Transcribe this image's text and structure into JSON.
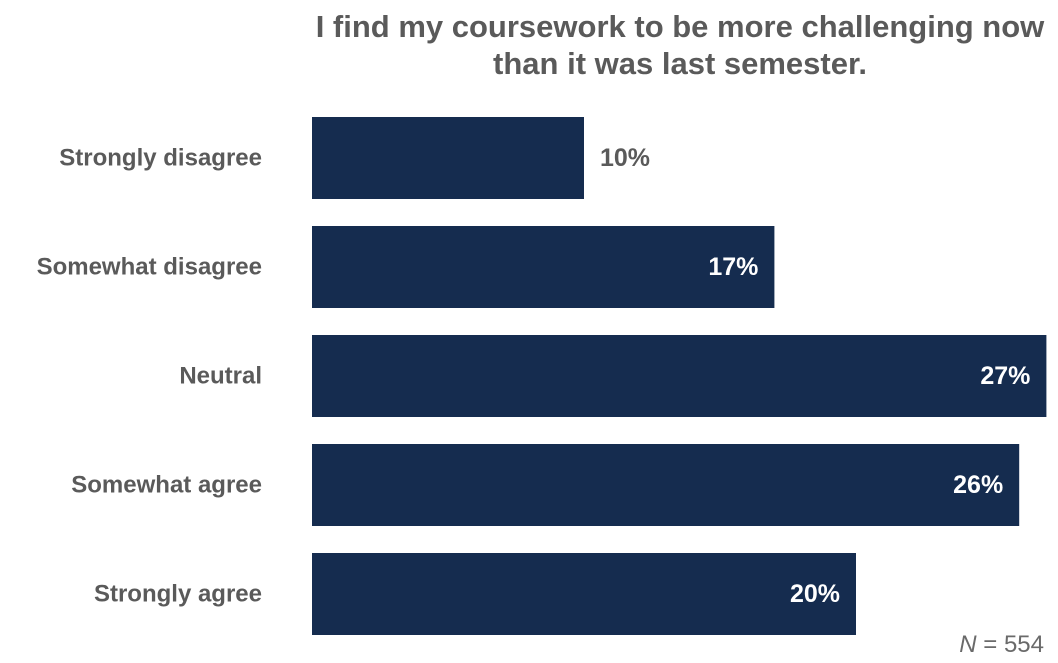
{
  "chart_data": {
    "type": "bar",
    "orientation": "horizontal",
    "title_lines": [
      "I find my coursework to be more challenging now",
      "than it was last semester."
    ],
    "categories": [
      "Strongly disagree",
      "Somewhat disagree",
      "Neutral",
      "Somewhat agree",
      "Strongly agree"
    ],
    "values": [
      10,
      17,
      27,
      26,
      20
    ],
    "value_labels": [
      "10%",
      "17%",
      "27%",
      "26%",
      "20%"
    ],
    "unit": "%",
    "bar_color": "#152c4f",
    "grid": false,
    "legend": false
  },
  "footnote": {
    "variable": "N",
    "equals": " = ",
    "count": "554"
  }
}
